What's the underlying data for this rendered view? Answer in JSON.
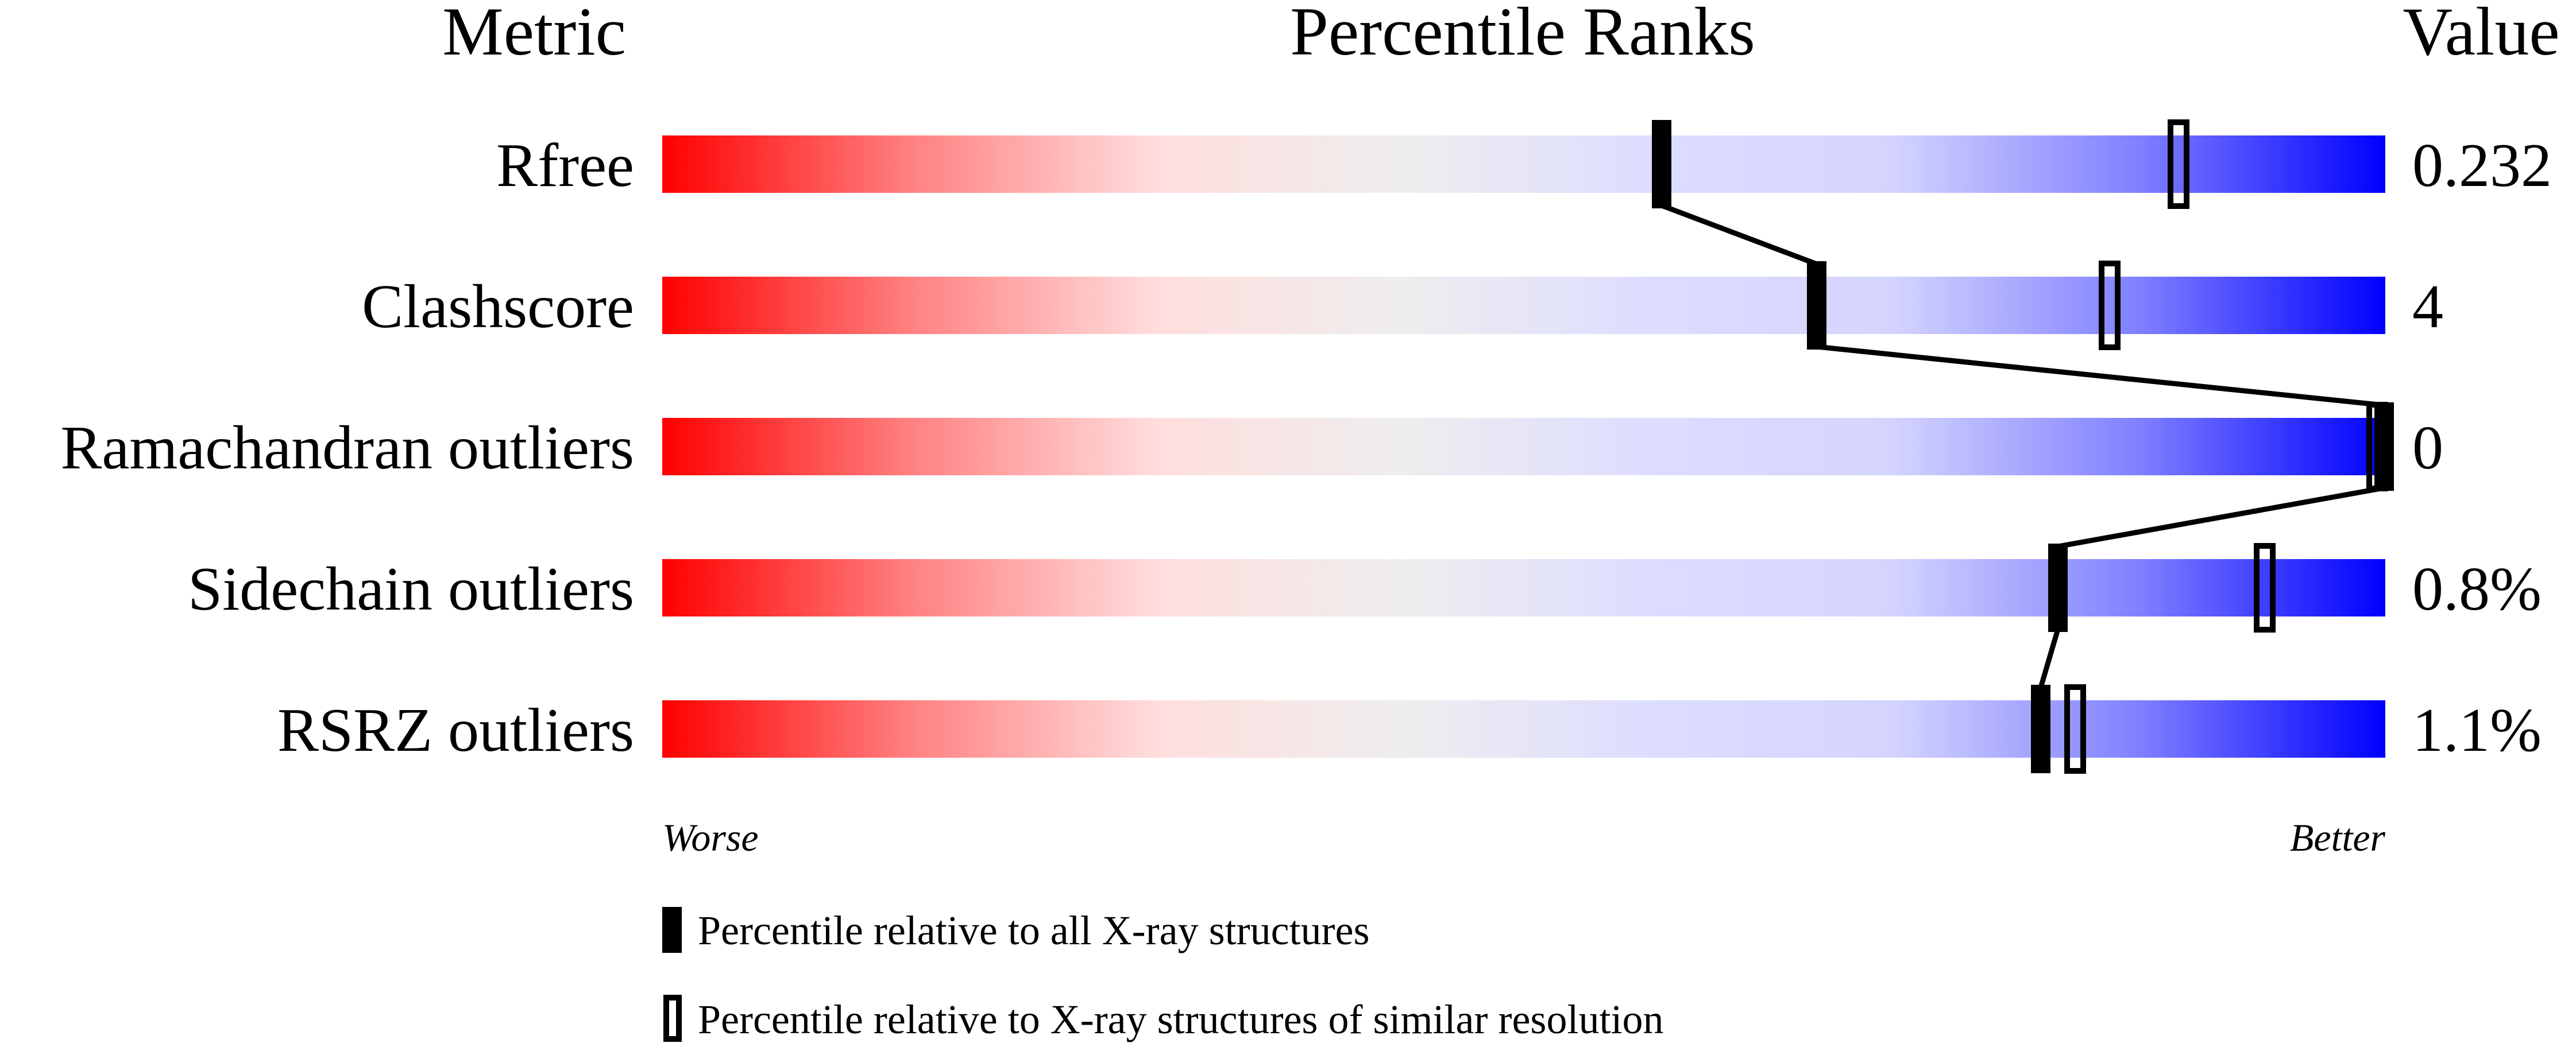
{
  "chart_data": {
    "type": "percentile-bars",
    "headers": {
      "metric": "Metric",
      "ranks": "Percentile Ranks",
      "value": "Value"
    },
    "xlim": [
      0,
      100
    ],
    "axis_labels": {
      "left": "Worse",
      "right": "Better"
    },
    "gradient_colors": [
      "#ff0000",
      "#ff8080",
      "#ffdddd",
      "#eeeeee",
      "#ddddff",
      "#d4d4ff",
      "#8080ff",
      "#0000ff"
    ],
    "rows": [
      {
        "metric": "Rfree",
        "value": "0.232",
        "percentile_all": 58,
        "percentile_similar": 88
      },
      {
        "metric": "Clashscore",
        "value": "4",
        "percentile_all": 67,
        "percentile_similar": 84
      },
      {
        "metric": "Ramachandran outliers",
        "value": "0",
        "percentile_all": 100,
        "percentile_similar": 100
      },
      {
        "metric": "Sidechain outliers",
        "value": "0.8%",
        "percentile_all": 81,
        "percentile_similar": 93
      },
      {
        "metric": "RSRZ outliers",
        "value": "1.1%",
        "percentile_all": 80,
        "percentile_similar": 82
      }
    ],
    "legend": {
      "filled": "Percentile relative to all X-ray structures",
      "open": "Percentile relative to X-ray structures of similar resolution"
    }
  }
}
